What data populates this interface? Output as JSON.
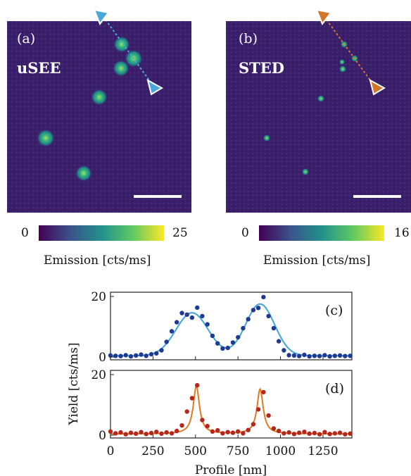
{
  "panels": {
    "a": {
      "tag": "(a)",
      "title": "uSEE"
    },
    "b": {
      "tag": "(b)",
      "title": "STED"
    }
  },
  "colorbars": {
    "a": {
      "min": "0",
      "max": "25",
      "label": "Emission [cts/ms]"
    },
    "b": {
      "min": "0",
      "max": "16",
      "label": "Emission [cts/ms]"
    }
  },
  "colors": {
    "background": "#3b1f6a",
    "usee_marker": "#4aa8d8",
    "sted_marker": "#d2762a",
    "usee_points": "#1f3a93",
    "usee_fit": "#3fa4d8",
    "sted_points": "#b5271c",
    "sted_fit": "#e07a20"
  },
  "chart_data": [
    {
      "type": "heatmap",
      "panel": "(a)",
      "title": "uSEE",
      "colorbar_range": [
        0,
        25
      ],
      "colorbar_label": "Emission [cts/ms]",
      "colormap": "viridis",
      "scale_bar": true,
      "profile_arrows": "blue triangles"
    },
    {
      "type": "heatmap",
      "panel": "(b)",
      "title": "STED",
      "colorbar_range": [
        0,
        16
      ],
      "colorbar_label": "Emission [cts/ms]",
      "colormap": "viridis",
      "scale_bar": true,
      "profile_arrows": "orange triangles"
    },
    {
      "type": "scatter",
      "panel": "(c)",
      "ylabel": "Yield [cts/ms]",
      "xlim": [
        0,
        1420
      ],
      "ylim": [
        0,
        20
      ],
      "yticks": [
        "0",
        "20"
      ],
      "xticks": [],
      "points": {
        "x": [
          0,
          30,
          60,
          90,
          120,
          150,
          180,
          210,
          240,
          270,
          300,
          330,
          360,
          390,
          420,
          450,
          480,
          510,
          540,
          570,
          600,
          630,
          660,
          690,
          720,
          750,
          780,
          810,
          840,
          870,
          900,
          930,
          960,
          990,
          1020,
          1050,
          1080,
          1110,
          1140,
          1170,
          1200,
          1230,
          1260,
          1290,
          1320,
          1350,
          1380,
          1410
        ],
        "y": [
          0.5,
          0.4,
          0.3,
          0.6,
          0.2,
          0.5,
          0.8,
          0.4,
          0.9,
          1.2,
          2.2,
          5.0,
          8.5,
          11.5,
          14.5,
          14.0,
          13.0,
          16.3,
          13.5,
          10.8,
          7.0,
          4.5,
          2.8,
          3.0,
          4.8,
          6.5,
          9.5,
          12.5,
          15.5,
          16.2,
          19.8,
          13.5,
          9.5,
          5.2,
          2.2,
          0.6,
          0.5,
          0.3,
          0.7,
          0.2,
          0.4,
          0.3,
          0.6,
          0.2,
          0.4,
          0.5,
          0.3,
          0.4
        ]
      },
      "fit": {
        "model": "double gaussian",
        "peaks": [
          {
            "center": 480,
            "amplitude": 14.2,
            "sigma": 95
          },
          {
            "center": 880,
            "amplitude": 17.1,
            "sigma": 85
          }
        ]
      }
    },
    {
      "type": "scatter",
      "panel": "(d)",
      "xlabel": "Profile [nm]",
      "xlim": [
        0,
        1420
      ],
      "ylim": [
        0,
        20
      ],
      "yticks": [
        "0",
        "20"
      ],
      "xticks": [
        "0",
        "250",
        "500",
        "750",
        "1000",
        "1250"
      ],
      "points": {
        "x": [
          0,
          30,
          60,
          90,
          120,
          150,
          180,
          210,
          240,
          270,
          300,
          330,
          360,
          390,
          420,
          450,
          480,
          510,
          540,
          570,
          600,
          630,
          660,
          690,
          720,
          750,
          780,
          810,
          840,
          870,
          900,
          930,
          960,
          990,
          1020,
          1050,
          1080,
          1110,
          1140,
          1170,
          1200,
          1230,
          1260,
          1290,
          1320,
          1350,
          1380,
          1410
        ],
        "y": [
          1.2,
          0.6,
          0.9,
          0.3,
          0.8,
          0.5,
          1.0,
          0.4,
          0.7,
          1.1,
          0.5,
          0.9,
          0.6,
          1.4,
          3.2,
          7.8,
          12.2,
          16.5,
          5.0,
          3.0,
          1.2,
          1.6,
          0.6,
          1.0,
          0.8,
          1.2,
          0.6,
          1.7,
          3.6,
          8.5,
          14.2,
          6.5,
          2.2,
          1.4,
          0.6,
          0.9,
          0.4,
          0.8,
          1.1,
          0.5,
          0.7,
          0.3,
          1.0,
          0.4,
          0.6,
          0.8,
          0.3,
          0.5
        ]
      },
      "fit": {
        "model": "double lorentzian",
        "peaks": [
          {
            "center": 505,
            "amplitude": 15.8,
            "gamma": 22
          },
          {
            "center": 880,
            "amplitude": 14.8,
            "gamma": 22
          }
        ]
      }
    }
  ]
}
